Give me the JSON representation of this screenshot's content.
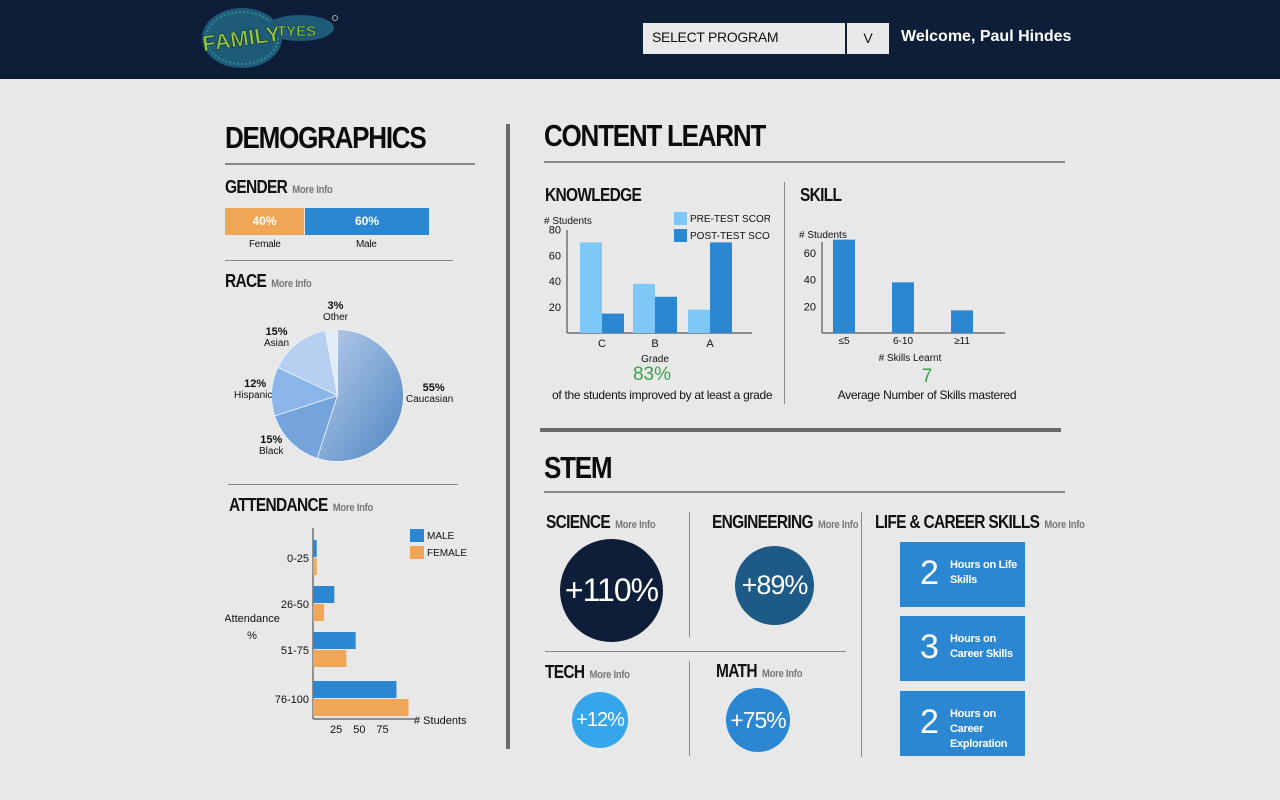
{
  "header": {
    "logo_text": "FAMILY TYES",
    "program_select": {
      "value": "SELECT PROGRAM",
      "arrow": "V"
    },
    "welcome": "Welcome, Paul Hindes"
  },
  "demographics": {
    "title": "DEMOGRAPHICS",
    "gender": {
      "title": "GENDER",
      "more": "More Info",
      "female": {
        "pct": "40%",
        "label": "Female",
        "value": 40
      },
      "male": {
        "pct": "60%",
        "label": "Male",
        "value": 60
      }
    },
    "race": {
      "title": "RACE",
      "more": "More Info"
    },
    "attendance": {
      "title": "ATTENDANCE",
      "more": "More Info"
    }
  },
  "content_learnt": {
    "title": "CONTENT LEARNT",
    "knowledge": {
      "title": "KNOWLEDGE",
      "stat": "83%",
      "stat_caption": "of the students improved by at least a grade"
    },
    "skill": {
      "title": "SKILL",
      "stat": "7",
      "stat_caption": "Average Number of Skills mastered"
    }
  },
  "stem": {
    "title": "STEM",
    "science": {
      "title": "SCIENCE",
      "more": "More Info",
      "value": "+110%"
    },
    "engineering": {
      "title": "ENGINEERING",
      "more": "More Info",
      "value": "+89%"
    },
    "tech": {
      "title": "TECH",
      "more": "More Info",
      "value": "+12%"
    },
    "math": {
      "title": "MATH",
      "more": "More Info",
      "value": "+75%"
    },
    "life_career": {
      "title": "LIFE & CAREER SKILLS",
      "more": "More Info",
      "cards": [
        {
          "num": "2",
          "text": "Hours on Life Skills"
        },
        {
          "num": "3",
          "text": "Hours on Career Skills"
        },
        {
          "num": "2",
          "text": "Hours on Career Exploration"
        }
      ]
    }
  },
  "colors": {
    "header_bg": "#0e1e38",
    "orange": "#f0a657",
    "blue": "#2b87d1",
    "light_blue": "#7ec8f7",
    "green": "#3aa44a",
    "navy": "#0e1e38",
    "steel": "#1d5a86",
    "sky": "#35a6ec"
  },
  "chart_data": [
    {
      "type": "pie",
      "labels": [
        "Caucasian",
        "Black",
        "Hispanic",
        "Asian",
        "Other"
      ],
      "values": [
        55,
        15,
        12,
        15,
        3
      ],
      "value_labels": [
        "55%",
        "15%",
        "12%",
        "15%",
        "3%"
      ]
    },
    {
      "type": "bar",
      "orientation": "horizontal",
      "categories": [
        "0-25",
        "26-50",
        "51-75",
        "76-100"
      ],
      "series": [
        {
          "name": "MALE",
          "values": [
            4,
            23,
            46,
            90
          ]
        },
        {
          "name": "FEMALE",
          "values": [
            4,
            12,
            36,
            103
          ]
        }
      ],
      "xlabel": "# Students",
      "ylabel": "Attendance %",
      "xticks": [
        "25",
        "50",
        "75"
      ],
      "xlim": [
        0,
        110
      ],
      "legend": "top-right"
    },
    {
      "type": "bar",
      "categories": [
        "C",
        "B",
        "A"
      ],
      "series": [
        {
          "name": "PRE-TEST SCORE",
          "values": [
            70,
            38,
            18
          ]
        },
        {
          "name": "POST-TEST SCORE",
          "values": [
            15,
            28,
            70
          ]
        }
      ],
      "xlabel": "Grade",
      "ylabel": "# Students",
      "yticks": [
        "20",
        "40",
        "60",
        "80"
      ],
      "ylim": [
        0,
        85
      ],
      "legend": "top-right"
    },
    {
      "type": "bar",
      "categories": [
        "≤5",
        "6-10",
        "≥11"
      ],
      "values": [
        70,
        38,
        17
      ],
      "xlabel": "# Skills Learnt",
      "ylabel": "# Students",
      "yticks": [
        "20",
        "40",
        "60"
      ],
      "ylim": [
        0,
        75
      ]
    }
  ]
}
